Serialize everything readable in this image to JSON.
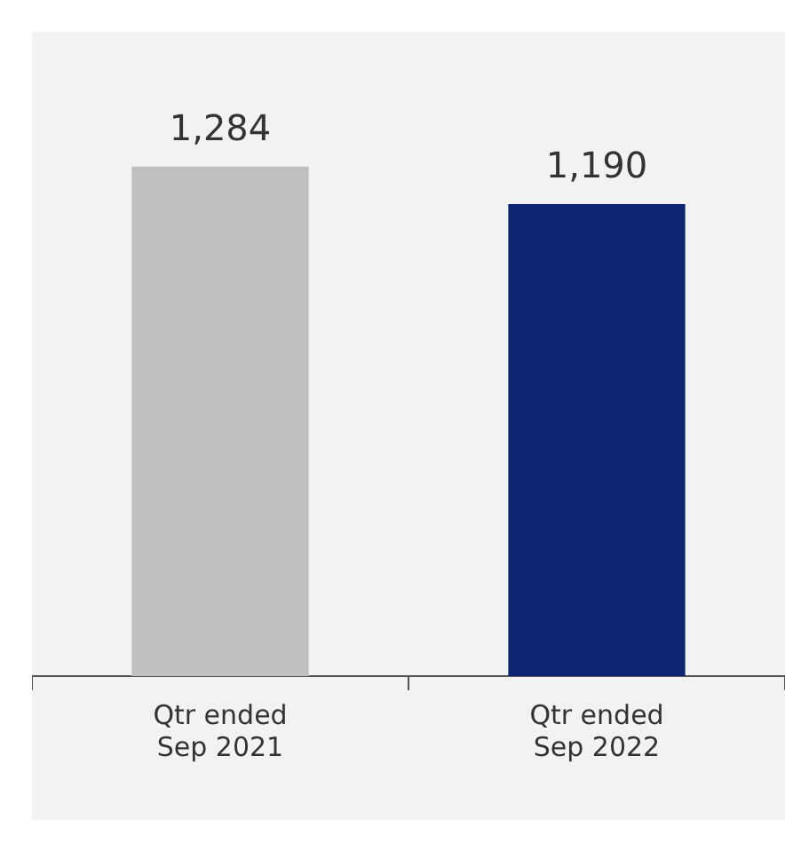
{
  "chart_data": {
    "type": "bar",
    "categories": [
      "Qtr ended Sep 2021",
      "Qtr ended Sep 2022"
    ],
    "values": [
      1284,
      1190
    ],
    "colors": [
      "#c0c0c0",
      "#0b2570"
    ],
    "value_labels": [
      "1,284",
      "1,190"
    ],
    "tick_labels": "x",
    "grid": false,
    "legend": false
  }
}
